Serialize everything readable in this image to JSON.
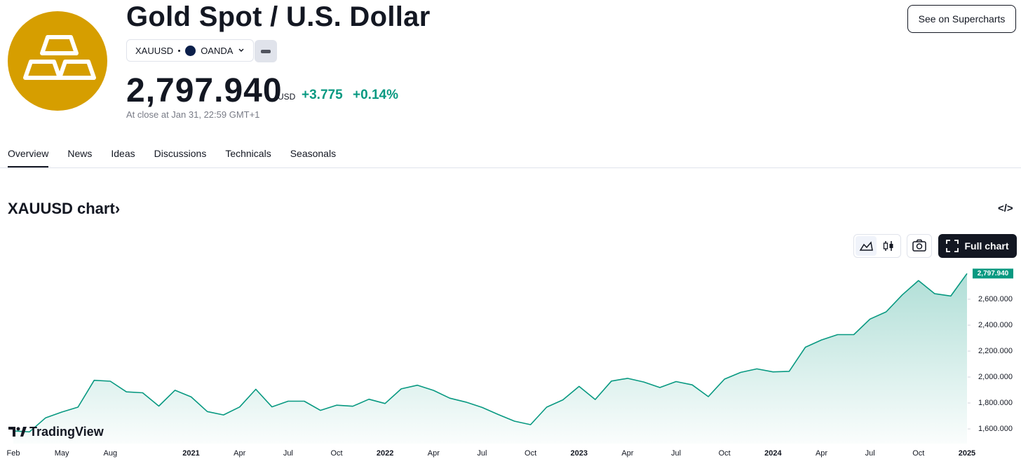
{
  "header": {
    "title": "Gold Spot / U.S. Dollar",
    "symbol": "XAUUSD",
    "exchange": "OANDA",
    "price": "2,797.940",
    "currency": "USD",
    "change": "+3.775",
    "change_percent": "+0.14%",
    "close_note": "At close at Jan 31, 22:59 GMT+1",
    "button": "See on Supercharts"
  },
  "tabs": [
    "Overview",
    "News",
    "Ideas",
    "Discussions",
    "Technicals",
    "Seasonals"
  ],
  "chart_heading": "XAUUSD chart",
  "chart_toolbar": {
    "full_chart": "Full chart"
  },
  "branding": "TradingView",
  "chart_data": {
    "type": "line",
    "categories": [
      "Feb",
      null,
      null,
      "May",
      null,
      null,
      "Aug",
      null,
      null,
      null,
      null,
      "2021",
      null,
      null,
      "Apr",
      null,
      null,
      "Jul",
      null,
      null,
      "Oct",
      null,
      null,
      "2022",
      null,
      null,
      "Apr",
      null,
      null,
      "Jul",
      null,
      null,
      "Oct",
      null,
      null,
      "2023",
      null,
      null,
      "Apr",
      null,
      null,
      "Jul",
      null,
      null,
      "Oct",
      null,
      null,
      "2024",
      null,
      null,
      "Apr",
      null,
      null,
      "Jul",
      null,
      null,
      "Oct",
      null,
      null,
      "2025"
    ],
    "values": [
      1585,
      1577,
      1686,
      1730,
      1768,
      1975,
      1968,
      1886,
      1879,
      1776,
      1898,
      1847,
      1734,
      1708,
      1769,
      1906,
      1770,
      1814,
      1814,
      1743,
      1783,
      1775,
      1829,
      1796,
      1909,
      1937,
      1897,
      1837,
      1807,
      1766,
      1711,
      1660,
      1633,
      1768,
      1824,
      1928,
      1827,
      1969,
      1990,
      1962,
      1919,
      1965,
      1940,
      1849,
      1984,
      2036,
      2063,
      2040,
      2044,
      2230,
      2286,
      2327,
      2327,
      2447,
      2503,
      2634,
      2744,
      2643,
      2625,
      2797.94
    ],
    "last_label": "2,797.940",
    "color": "#089981",
    "ylim": [
      1487,
      2827
    ],
    "yticks": [
      {
        "value": 1600,
        "label": "1,600.000"
      },
      {
        "value": 1800,
        "label": "1,800.000"
      },
      {
        "value": 2000,
        "label": "2,000.000"
      },
      {
        "value": 2200,
        "label": "2,200.000"
      },
      {
        "value": 2400,
        "label": "2,400.000"
      },
      {
        "value": 2600,
        "label": "2,600.000"
      }
    ],
    "grid": false
  }
}
